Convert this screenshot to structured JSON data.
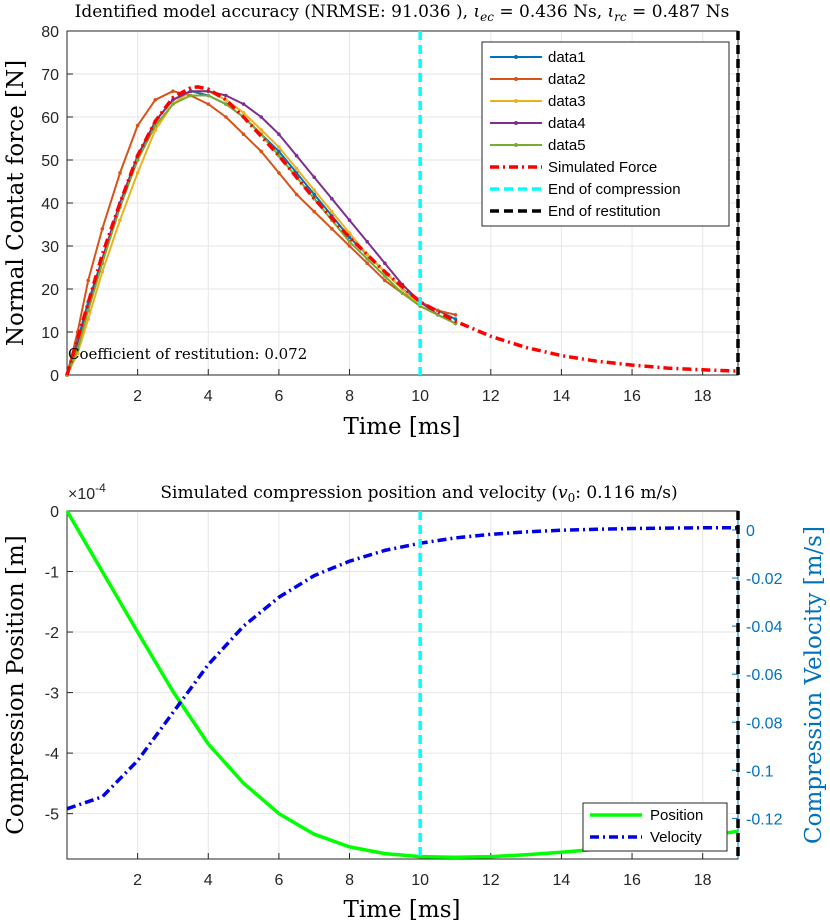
{
  "chart_data": [
    {
      "type": "line",
      "title": "Identified model accuracy (NRMSE: 91.036 ), ιec = 0.436 Ns, ιrc = 0.487 Ns",
      "title_parts": {
        "prefix": "Identified model accuracy (NRMSE: 91.036 ), ",
        "iota": "ι",
        "ec_sub": "ec",
        "ec_value": " = 0.436 Ns, ",
        "rc_sub": "rc",
        "rc_value": " = 0.487 Ns"
      },
      "xlabel": "Time [ms]",
      "ylabel": "Normal Contat force [N]",
      "xlim": [
        0,
        19
      ],
      "ylim": [
        0,
        80
      ],
      "xticks": [
        2,
        4,
        6,
        8,
        10,
        12,
        14,
        16,
        18
      ],
      "yticks": [
        0,
        10,
        20,
        30,
        40,
        50,
        60,
        70,
        80
      ],
      "grid": true,
      "legend_position": "top-right",
      "annotation": "Coefficient of restitution: 0.072",
      "series": [
        {
          "name": "data1",
          "color": "#0072BD",
          "style": "solid-dots",
          "x": [
            0,
            0.3,
            0.6,
            1,
            1.5,
            2,
            2.5,
            3,
            3.5,
            4,
            4.5,
            5,
            5.5,
            6,
            6.5,
            7,
            7.5,
            8,
            8.5,
            9,
            9.5,
            10,
            10.5,
            11
          ],
          "y": [
            0,
            8,
            17,
            27,
            40,
            50,
            59,
            64,
            66,
            65,
            63,
            60,
            56,
            52,
            47,
            42,
            37,
            32,
            28,
            24,
            20,
            17,
            15,
            13
          ]
        },
        {
          "name": "data2",
          "color": "#D95319",
          "style": "solid-dots",
          "x": [
            0,
            0.3,
            0.6,
            1,
            1.5,
            2,
            2.5,
            3,
            3.5,
            4,
            4.5,
            5,
            5.5,
            6,
            6.5,
            7,
            7.5,
            8,
            8.5,
            9,
            9.5,
            10,
            10.5,
            11
          ],
          "y": [
            0,
            10,
            22,
            34,
            47,
            58,
            64,
            66,
            65,
            63,
            60,
            56,
            52,
            47,
            42,
            38,
            34,
            30,
            26,
            22,
            19,
            17,
            15,
            14
          ]
        },
        {
          "name": "data3",
          "color": "#EDB120",
          "style": "solid-dots",
          "x": [
            0,
            0.3,
            0.6,
            1,
            1.5,
            2,
            2.5,
            3,
            3.5,
            4,
            4.5,
            5,
            5.5,
            6,
            6.5,
            7,
            7.5,
            8,
            8.5,
            9,
            9.5,
            10,
            10.5,
            11
          ],
          "y": [
            0,
            5,
            13,
            24,
            36,
            47,
            57,
            63,
            66,
            66,
            64,
            61,
            57,
            53,
            48,
            43,
            38,
            33,
            28,
            24,
            20,
            16,
            14,
            12
          ]
        },
        {
          "name": "data4",
          "color": "#7E2F8E",
          "style": "solid-dots",
          "x": [
            0,
            0.3,
            0.6,
            1,
            1.5,
            2,
            2.5,
            3,
            3.5,
            4,
            4.5,
            5,
            5.5,
            6,
            6.5,
            7,
            7.5,
            8,
            8.5,
            9,
            9.5,
            10,
            10.5,
            11
          ],
          "y": [
            0,
            7,
            16,
            27,
            40,
            51,
            59,
            64,
            66,
            66,
            65,
            63,
            60,
            56,
            51,
            46,
            41,
            36,
            31,
            26,
            21,
            17,
            14,
            12
          ]
        },
        {
          "name": "data5",
          "color": "#77AC30",
          "style": "solid-dots",
          "x": [
            0,
            0.3,
            0.6,
            1,
            1.5,
            2,
            2.5,
            3,
            3.5,
            4,
            4.5,
            5,
            5.5,
            6,
            6.5,
            7,
            7.5,
            8,
            8.5,
            9,
            9.5,
            10,
            10.5,
            11
          ],
          "y": [
            0,
            6,
            15,
            26,
            39,
            50,
            58,
            63,
            65,
            65,
            63,
            60,
            56,
            51,
            46,
            41,
            36,
            31,
            27,
            23,
            19,
            16,
            14,
            12
          ]
        },
        {
          "name": "Simulated Force",
          "color": "#FF0000",
          "style": "dashdot",
          "x": [
            0,
            0.5,
            1,
            1.5,
            2,
            2.5,
            3,
            3.5,
            3.7,
            4,
            4.5,
            5,
            6,
            7,
            8,
            9,
            10,
            11,
            12,
            13,
            14,
            15,
            16,
            17,
            18,
            19
          ],
          "y": [
            0,
            14,
            28,
            40,
            51,
            59,
            64.5,
            66.8,
            67,
            66.5,
            64,
            60,
            51,
            41,
            32,
            24,
            17,
            12.5,
            9,
            6.4,
            4.5,
            3.2,
            2.3,
            1.6,
            1.2,
            0.9
          ]
        },
        {
          "name": "End of compression",
          "color": "#00FFFF",
          "style": "vline",
          "x": 10
        },
        {
          "name": "End of restitution",
          "color": "#000000",
          "style": "vline",
          "x": 19
        }
      ]
    },
    {
      "type": "line",
      "title": "Simulated compression position and velocity (v0: 0.116 m/s)",
      "title_parts": {
        "prefix": "Simulated compression position and velocity (",
        "v": "v",
        "sub": "0",
        "suffix": ": 0.116 m/s)"
      },
      "xlabel": "Time [ms]",
      "ylabel_left": "Compression Position [m]",
      "ylabel_right": "Compression Velocity [m/s]",
      "left_exponent": "×10-4",
      "left_exponent_base": "×10",
      "left_exponent_power": "-4",
      "xlim": [
        0,
        19
      ],
      "ylim_left": [
        -5.75,
        0
      ],
      "ylim_right": [
        -0.1369,
        0.0079
      ],
      "xticks": [
        2,
        4,
        6,
        8,
        10,
        12,
        14,
        16,
        18
      ],
      "yticks_left": [
        0,
        -1,
        -2,
        -3,
        -4,
        -5
      ],
      "yticks_left_labels": [
        "0",
        "-1",
        "-2",
        "-3",
        "-4",
        "-5"
      ],
      "yticks_right": [
        0,
        -0.02,
        -0.04,
        -0.06,
        -0.08,
        -0.1,
        -0.12
      ],
      "yticks_right_labels": [
        "0",
        "-0.02",
        "-0.04",
        "-0.06",
        "-0.08",
        "-0.1",
        "-0.12"
      ],
      "grid": true,
      "legend_position": "bottom-right",
      "series": [
        {
          "name": "Position",
          "color": "#00FF00",
          "style": "solid",
          "axis": "left",
          "x": [
            0,
            1,
            2,
            3,
            4,
            5,
            6,
            7,
            8,
            9,
            10,
            11,
            12,
            13,
            14,
            15,
            16,
            17,
            18,
            19
          ],
          "y": [
            0,
            -1.0,
            -2.0,
            -2.98,
            -3.85,
            -4.5,
            -5.0,
            -5.34,
            -5.55,
            -5.66,
            -5.71,
            -5.72,
            -5.71,
            -5.68,
            -5.64,
            -5.59,
            -5.52,
            -5.45,
            -5.38,
            -5.29
          ]
        },
        {
          "name": "Velocity",
          "color": "#0000E6",
          "style": "dashdot",
          "axis": "right",
          "x": [
            0,
            1,
            2,
            3,
            4,
            5,
            6,
            7,
            8,
            9,
            10,
            11,
            12,
            13,
            14,
            15,
            16,
            17,
            18,
            19
          ],
          "y": [
            -0.116,
            -0.111,
            -0.096,
            -0.076,
            -0.056,
            -0.04,
            -0.028,
            -0.019,
            -0.013,
            -0.0085,
            -0.0055,
            -0.0033,
            -0.0018,
            -0.0008,
            -0.0001,
            0.0003,
            0.0006,
            0.0008,
            0.0009,
            0.0009
          ]
        },
        {
          "name": "End of compression",
          "color": "#00FFFF",
          "style": "vline",
          "x": 10
        },
        {
          "name": "End of restitution",
          "color": "#000000",
          "style": "vline",
          "x": 19
        }
      ]
    }
  ]
}
